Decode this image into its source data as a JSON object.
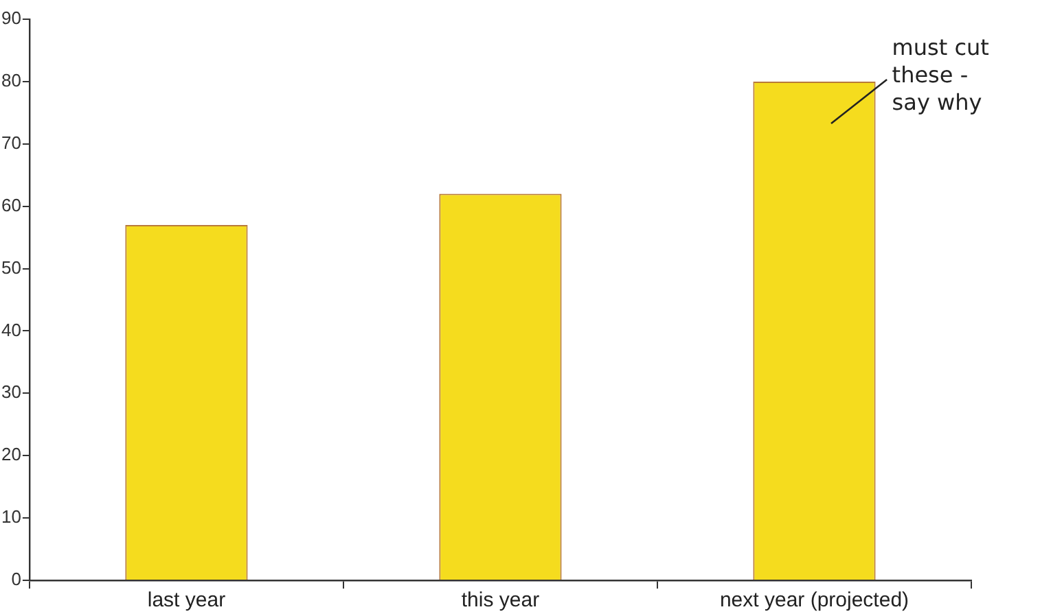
{
  "chart_data": {
    "type": "bar",
    "categories": [
      "last year",
      "this year",
      "next year (projected)"
    ],
    "values": [
      57,
      62,
      80
    ],
    "color": "#f5dc1e",
    "ylim": [
      0,
      90
    ],
    "yticks": [
      0,
      10,
      20,
      30,
      40,
      50,
      60,
      70,
      80,
      90
    ],
    "grid": false,
    "legend": false,
    "annotations": [
      "must cut these - say why"
    ]
  }
}
